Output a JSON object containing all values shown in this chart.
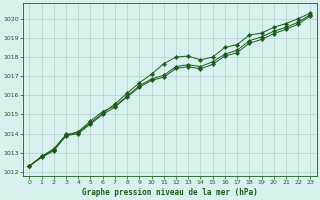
{
  "title": "Graphe pression niveau de la mer (hPa)",
  "bg_color": "#d8f0ee",
  "grid_color": "#b8cece",
  "line_color": "#1a5c1a",
  "marker_color": "#1a5c1a",
  "xlim": [
    -0.5,
    23.5
  ],
  "ylim": [
    1011.8,
    1020.8
  ],
  "yticks": [
    1012,
    1013,
    1014,
    1015,
    1016,
    1017,
    1018,
    1019,
    1020
  ],
  "xticks": [
    0,
    1,
    2,
    3,
    4,
    5,
    6,
    7,
    8,
    9,
    10,
    11,
    12,
    13,
    14,
    15,
    16,
    17,
    18,
    19,
    20,
    21,
    22,
    23
  ],
  "series1": [
    1012.3,
    1012.8,
    1013.2,
    1013.95,
    1014.05,
    1014.55,
    1015.05,
    1015.55,
    1016.1,
    1016.65,
    1017.1,
    1017.65,
    1018.0,
    1018.05,
    1017.85,
    1018.0,
    1018.5,
    1018.65,
    1019.15,
    1019.25,
    1019.55,
    1019.75,
    1020.0,
    1020.3
  ],
  "series2": [
    1012.3,
    1012.8,
    1013.15,
    1013.9,
    1014.1,
    1014.65,
    1015.15,
    1015.45,
    1015.95,
    1016.5,
    1016.85,
    1017.05,
    1017.5,
    1017.6,
    1017.5,
    1017.75,
    1018.15,
    1018.35,
    1018.85,
    1019.05,
    1019.35,
    1019.55,
    1019.82,
    1020.22
  ],
  "series3": [
    1012.3,
    1012.75,
    1013.1,
    1013.88,
    1014.0,
    1014.5,
    1015.0,
    1015.38,
    1015.92,
    1016.42,
    1016.78,
    1016.95,
    1017.4,
    1017.5,
    1017.38,
    1017.62,
    1018.05,
    1018.22,
    1018.72,
    1018.92,
    1019.22,
    1019.45,
    1019.72,
    1020.15
  ]
}
